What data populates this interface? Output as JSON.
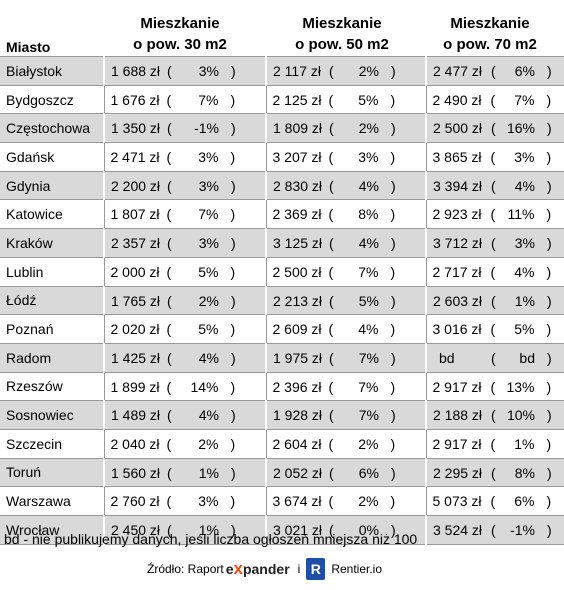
{
  "headers": {
    "city": "Miasto",
    "col1": [
      "Mieszkanie",
      "o pow. 30 m2"
    ],
    "col2": [
      "Mieszkanie",
      "o pow. 50 m2"
    ],
    "col3": [
      "Mieszkanie",
      "o pow. 70 m2"
    ]
  },
  "rows": [
    {
      "city": "Białystok",
      "v": [
        [
          "1 688 zł",
          "3%"
        ],
        [
          "2 117 zł",
          "2%"
        ],
        [
          "2 477 zł",
          "6%"
        ]
      ]
    },
    {
      "city": "Bydgoszcz",
      "v": [
        [
          "1 676 zł",
          "7%"
        ],
        [
          "2 125 zł",
          "5%"
        ],
        [
          "2 490 zł",
          "7%"
        ]
      ]
    },
    {
      "city": "Częstochowa",
      "v": [
        [
          "1 350 zł",
          "-1%"
        ],
        [
          "1 809 zł",
          "2%"
        ],
        [
          "2 500 zł",
          "16%"
        ]
      ]
    },
    {
      "city": "Gdańsk",
      "v": [
        [
          "2 471 zł",
          "3%"
        ],
        [
          "3 207 zł",
          "3%"
        ],
        [
          "3 865 zł",
          "3%"
        ]
      ]
    },
    {
      "city": "Gdynia",
      "v": [
        [
          "2 200 zł",
          "3%"
        ],
        [
          "2 830 zł",
          "4%"
        ],
        [
          "3 394 zł",
          "4%"
        ]
      ]
    },
    {
      "city": "Katowice",
      "v": [
        [
          "1 807 zł",
          "7%"
        ],
        [
          "2 369 zł",
          "8%"
        ],
        [
          "2 923 zł",
          "11%"
        ]
      ]
    },
    {
      "city": "Kraków",
      "v": [
        [
          "2 357 zł",
          "3%"
        ],
        [
          "3 125 zł",
          "4%"
        ],
        [
          "3 712 zł",
          "3%"
        ]
      ]
    },
    {
      "city": "Lublin",
      "v": [
        [
          "2 000 zł",
          "5%"
        ],
        [
          "2 500 zł",
          "7%"
        ],
        [
          "2 717 zł",
          "4%"
        ]
      ]
    },
    {
      "city": "Łódź",
      "v": [
        [
          "1 765 zł",
          "2%"
        ],
        [
          "2 213 zł",
          "5%"
        ],
        [
          "2 603 zł",
          "1%"
        ]
      ]
    },
    {
      "city": "Poznań",
      "v": [
        [
          "2 020 zł",
          "5%"
        ],
        [
          "2 609 zł",
          "4%"
        ],
        [
          "3 016 zł",
          "5%"
        ]
      ]
    },
    {
      "city": "Radom",
      "v": [
        [
          "1 425 zł",
          "4%"
        ],
        [
          "1 975 zł",
          "7%"
        ],
        [
          "bd",
          "bd"
        ]
      ]
    },
    {
      "city": "Rzeszów",
      "v": [
        [
          "1 899 zł",
          "14%"
        ],
        [
          "2 396 zł",
          "7%"
        ],
        [
          "2 917 zł",
          "13%"
        ]
      ]
    },
    {
      "city": "Sosnowiec",
      "v": [
        [
          "1 489 zł",
          "4%"
        ],
        [
          "1 928 zł",
          "7%"
        ],
        [
          "2 188 zł",
          "10%"
        ]
      ]
    },
    {
      "city": "Szczecin",
      "v": [
        [
          "2 040 zł",
          "2%"
        ],
        [
          "2 604 zł",
          "2%"
        ],
        [
          "2 917 zł",
          "1%"
        ]
      ]
    },
    {
      "city": "Toruń",
      "v": [
        [
          "1 560 zł",
          "1%"
        ],
        [
          "2 052 zł",
          "6%"
        ],
        [
          "2 295 zł",
          "8%"
        ]
      ]
    },
    {
      "city": "Warszawa",
      "v": [
        [
          "2 760 zł",
          "3%"
        ],
        [
          "3 674 zł",
          "2%"
        ],
        [
          "5 073 zł",
          "6%"
        ]
      ]
    },
    {
      "city": "Wrocław",
      "v": [
        [
          "2 450 zł",
          "1%"
        ],
        [
          "3 021 zł",
          "0%"
        ],
        [
          "3 524 zł",
          "-1%"
        ]
      ]
    }
  ],
  "footnote": "bd - nie publikujemy danych, jeśli liczba ogłoszeń mniejsza niż 100",
  "source": {
    "label": "Źródło: Raport",
    "expander_pre": "e",
    "expander_x": "x",
    "expander_post": "pander",
    "separator": "i",
    "r_logo_letter": "R",
    "rentier": "Rentier.io"
  }
}
